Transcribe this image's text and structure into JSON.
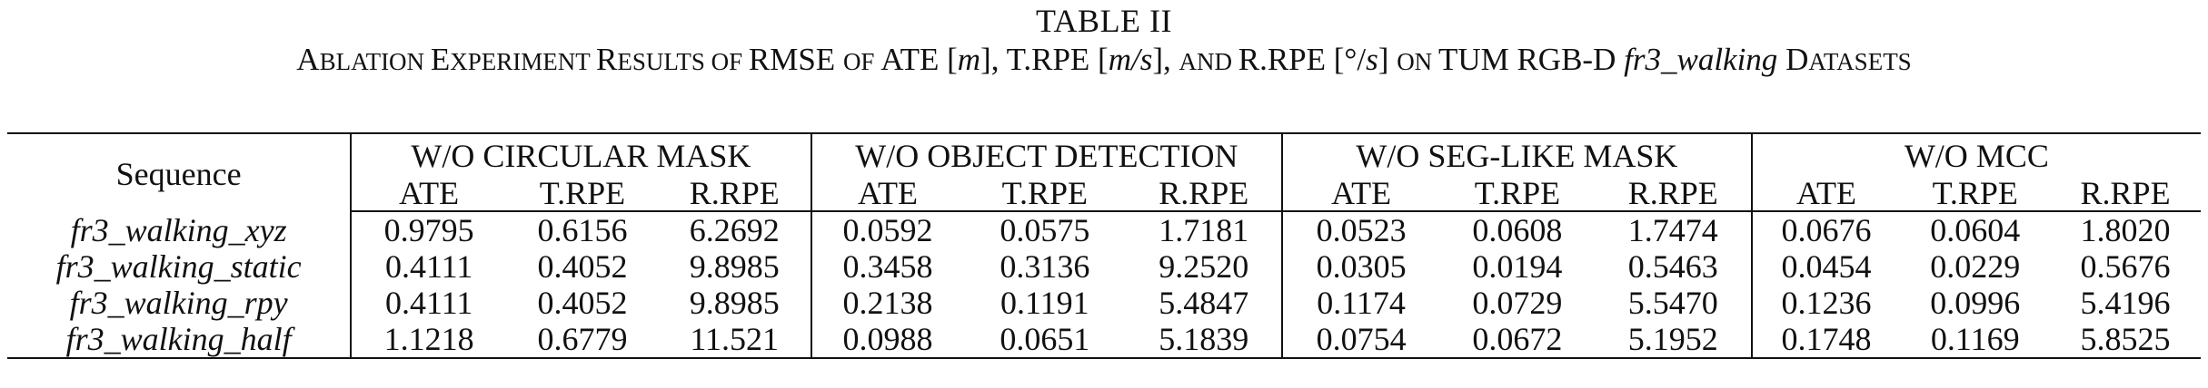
{
  "table_label": "TABLE II",
  "caption": {
    "p1_big": "A",
    "p1_small": "BLATION ",
    "p2_big": "E",
    "p2_small": "XPERIMENT ",
    "p3_big": "R",
    "p3_small": "ESULTS OF ",
    "p4": "RMSE ",
    "p5_small": "OF ",
    "p6": "ATE [",
    "m_unit": "m",
    "p7": "], T.RPE [",
    "ms_unit": "m/s",
    "p8": "], ",
    "p9_small": "AND ",
    "p10": "R.RPE [°/",
    "s_unit": "s",
    "p11": "] ",
    "p12_small": "ON ",
    "p13": "TUM RGB-D ",
    "dataset": "fr3_walking",
    "p14_big": " D",
    "p14_small": "ATASETS"
  },
  "table": {
    "sequence_header": "Sequence",
    "groups": [
      "W/O CIRCULAR MASK",
      "W/O OBJECT DETECTION",
      "W/O SEG-LIKE MASK",
      "W/O MCC"
    ],
    "metrics": [
      "ATE",
      "T.RPE",
      "R.RPE"
    ],
    "rows": [
      {
        "seq": "fr3_walking_xyz",
        "vals": [
          "0.9795",
          "0.6156",
          "6.2692",
          "0.0592",
          "0.0575",
          "1.7181",
          "0.0523",
          "0.0608",
          "1.7474",
          "0.0676",
          "0.0604",
          "1.8020"
        ]
      },
      {
        "seq": "fr3_walking_static",
        "vals": [
          "0.4111",
          "0.4052",
          "9.8985",
          "0.3458",
          "0.3136",
          "9.2520",
          "0.0305",
          "0.0194",
          "0.5463",
          "0.0454",
          "0.0229",
          "0.5676"
        ]
      },
      {
        "seq": "fr3_walking_rpy",
        "vals": [
          "0.4111",
          "0.4052",
          "9.8985",
          "0.2138",
          "0.1191",
          "5.4847",
          "0.1174",
          "0.0729",
          "5.5470",
          "0.1236",
          "0.0996",
          "5.4196"
        ]
      },
      {
        "seq": "fr3_walking_half",
        "vals": [
          "1.1218",
          "0.6779",
          "11.521",
          "0.0988",
          "0.0651",
          "5.1839",
          "0.0754",
          "0.0672",
          "5.1952",
          "0.1748",
          "0.1169",
          "5.8525"
        ]
      }
    ]
  }
}
